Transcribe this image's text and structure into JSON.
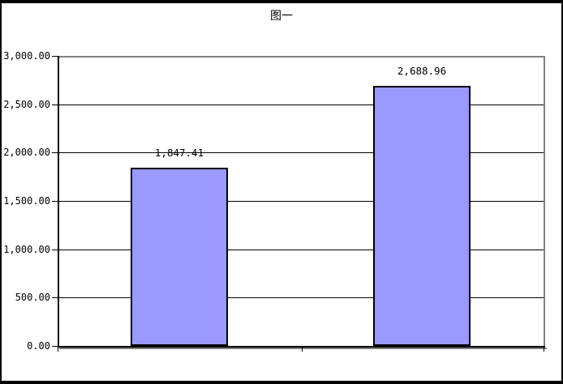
{
  "chart_data": {
    "type": "bar",
    "title": "图一",
    "categories": [
      "",
      ""
    ],
    "series": [
      {
        "name": "",
        "values": [
          1847.41,
          2688.96
        ]
      }
    ],
    "values": [
      1847.41,
      2688.96
    ],
    "value_labels": [
      "1,847.41",
      "2,688.96"
    ],
    "ylim": [
      0,
      3000
    ],
    "ytick_interval": 500,
    "ytick_labels": [
      "0.00",
      "500.00",
      "1,000.00",
      "1,500.00",
      "2,000.00",
      "2,500.00",
      "3,000.00"
    ],
    "xlabel": "",
    "ylabel": "",
    "grid": true,
    "legend": false,
    "colors": {
      "bar_fill": "#9999FF",
      "bar_border": "#000000",
      "gridline": "#000000",
      "axis": "#000000",
      "wall_border": "#808080",
      "background": "#FFFFFF",
      "outer_border": "#000000"
    }
  }
}
